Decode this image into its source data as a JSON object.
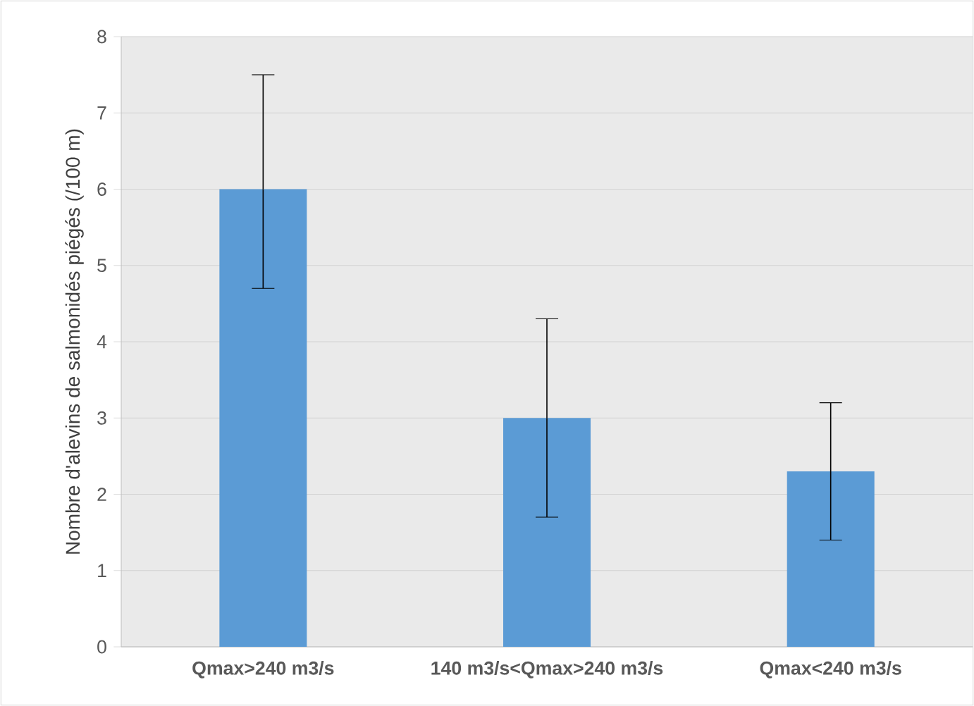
{
  "chart_data": {
    "type": "bar",
    "ylabel": "Nombre d'alevins de salmonidés piégés (/100 m)",
    "categories": [
      "Qmax>240 m3/s",
      "140 m3/s<Qmax>240 m3/s",
      "Qmax<240 m3/s"
    ],
    "values": [
      6,
      3,
      2.3
    ],
    "errors": [
      [
        4.7,
        7.5
      ],
      [
        1.7,
        4.3
      ],
      [
        1.4,
        3.2
      ]
    ],
    "color": "#5b9bd5",
    "ylim": [
      0,
      8
    ],
    "yticks": [
      0,
      1,
      2,
      3,
      4,
      5,
      6,
      7,
      8
    ],
    "grid": "y"
  }
}
